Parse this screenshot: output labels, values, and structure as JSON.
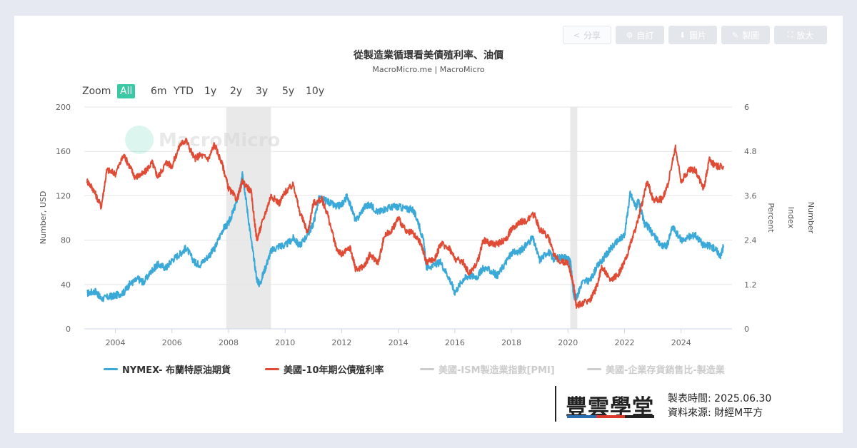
{
  "toolbar": {
    "share": "分享",
    "custom": "自訂",
    "image": "圖片",
    "draw": "製圖",
    "enlarge": "放大"
  },
  "chart_title": "從製造業循環看美債殖利率、油價",
  "chart_subtitle": "MacroMicro.me | MacroMicro",
  "watermark": "MacroMicro",
  "zoom": {
    "label": "Zoom",
    "options": [
      "All",
      "6m",
      "YTD",
      "1y",
      "2y",
      "3y",
      "5y",
      "10y"
    ],
    "selected": "All"
  },
  "brand": {
    "name": "豐雲學堂",
    "date_label": "製表時間:",
    "date": "2025.06.30",
    "source_label": "資料來源:",
    "source": "財經M平方"
  },
  "colors": {
    "oil": "#3aa9d8",
    "yield": "#e04b35",
    "pmi": "#cccccc",
    "ratio": "#cccccc",
    "recession": "#e9e9e9"
  },
  "chart_data": {
    "type": "line",
    "x_ticks": [
      "2004",
      "2006",
      "2008",
      "2010",
      "2012",
      "2014",
      "2016",
      "2018",
      "2020",
      "2022",
      "2024"
    ],
    "xlim": [
      2002.9,
      2025.8
    ],
    "left_axis": {
      "label": "Number, USD",
      "ticks": [
        "0",
        "40",
        "80",
        "120",
        "160",
        "200"
      ],
      "lim": [
        0,
        200
      ]
    },
    "right_axis": {
      "ticks": [
        "0",
        "1.2",
        "2.4",
        "3.6",
        "4.8",
        "6"
      ],
      "lim": [
        0,
        6
      ]
    },
    "right_axis_labels": [
      "Percent",
      "Index",
      "Number"
    ],
    "recession_bands": [
      [
        2007.92,
        2009.5
      ],
      [
        2020.08,
        2020.33
      ]
    ],
    "series": [
      {
        "name": "NYMEX- 布蘭特原油期貨",
        "axis": "left",
        "x": [
          2003.0,
          2003.3,
          2003.5,
          2003.8,
          2004.0,
          2004.3,
          2004.5,
          2004.8,
          2005.0,
          2005.3,
          2005.5,
          2005.8,
          2006.0,
          2006.3,
          2006.5,
          2006.8,
          2007.0,
          2007.3,
          2007.5,
          2007.8,
          2008.0,
          2008.2,
          2008.4,
          2008.5,
          2008.6,
          2008.8,
          2009.0,
          2009.1,
          2009.3,
          2009.5,
          2009.8,
          2010.0,
          2010.3,
          2010.5,
          2010.8,
          2011.0,
          2011.2,
          2011.5,
          2011.8,
          2012.0,
          2012.2,
          2012.5,
          2012.8,
          2013.0,
          2013.3,
          2013.5,
          2013.8,
          2014.0,
          2014.3,
          2014.5,
          2014.7,
          2014.9,
          2015.0,
          2015.3,
          2015.5,
          2015.8,
          2016.0,
          2016.3,
          2016.5,
          2016.8,
          2017.0,
          2017.3,
          2017.5,
          2017.8,
          2018.0,
          2018.3,
          2018.5,
          2018.75,
          2019.0,
          2019.3,
          2019.5,
          2019.8,
          2020.0,
          2020.1,
          2020.2,
          2020.3,
          2020.5,
          2020.8,
          2021.0,
          2021.3,
          2021.5,
          2021.8,
          2022.0,
          2022.2,
          2022.4,
          2022.5,
          2022.7,
          2022.9,
          2023.0,
          2023.3,
          2023.5,
          2023.7,
          2024.0,
          2024.3,
          2024.5,
          2024.8,
          2025.0,
          2025.2,
          2025.4,
          2025.5
        ],
        "values": [
          32,
          34,
          27,
          29,
          30,
          33,
          40,
          45,
          42,
          53,
          58,
          55,
          62,
          68,
          73,
          60,
          58,
          66,
          72,
          90,
          95,
          108,
          125,
          140,
          120,
          80,
          45,
          40,
          55,
          70,
          75,
          75,
          82,
          75,
          85,
          95,
          118,
          115,
          110,
          112,
          120,
          97,
          110,
          112,
          105,
          108,
          110,
          110,
          108,
          108,
          97,
          78,
          55,
          58,
          60,
          46,
          33,
          45,
          48,
          47,
          55,
          52,
          48,
          60,
          68,
          70,
          75,
          82,
          62,
          70,
          63,
          65,
          64,
          58,
          30,
          28,
          42,
          44,
          55,
          65,
          72,
          80,
          85,
          122,
          110,
          115,
          95,
          90,
          85,
          75,
          75,
          92,
          80,
          83,
          85,
          75,
          75,
          72,
          66,
          75
        ]
      },
      {
        "name": "美國-10年期公債殖利率",
        "axis": "right",
        "x": [
          2003.0,
          2003.2,
          2003.5,
          2003.7,
          2004.0,
          2004.3,
          2004.5,
          2004.7,
          2005.0,
          2005.3,
          2005.5,
          2005.8,
          2006.0,
          2006.3,
          2006.5,
          2006.8,
          2007.0,
          2007.3,
          2007.5,
          2007.8,
          2008.0,
          2008.3,
          2008.5,
          2008.8,
          2009.0,
          2009.2,
          2009.5,
          2009.8,
          2010.0,
          2010.3,
          2010.5,
          2010.8,
          2011.0,
          2011.3,
          2011.5,
          2011.8,
          2012.0,
          2012.3,
          2012.5,
          2012.8,
          2013.0,
          2013.3,
          2013.5,
          2013.8,
          2014.0,
          2014.3,
          2014.5,
          2014.8,
          2015.0,
          2015.3,
          2015.5,
          2015.8,
          2016.0,
          2016.3,
          2016.5,
          2016.8,
          2017.0,
          2017.3,
          2017.5,
          2017.8,
          2018.0,
          2018.3,
          2018.5,
          2018.8,
          2019.0,
          2019.3,
          2019.5,
          2019.8,
          2020.0,
          2020.2,
          2020.3,
          2020.5,
          2020.8,
          2021.0,
          2021.2,
          2021.5,
          2021.8,
          2022.0,
          2022.3,
          2022.5,
          2022.8,
          2023.0,
          2023.3,
          2023.5,
          2023.8,
          2024.0,
          2024.3,
          2024.5,
          2024.8,
          2025.0,
          2025.2,
          2025.5
        ],
        "values": [
          4.0,
          3.8,
          3.3,
          4.3,
          4.2,
          4.7,
          4.4,
          4.1,
          4.2,
          4.5,
          4.1,
          4.5,
          4.4,
          5.0,
          5.1,
          4.6,
          4.7,
          4.6,
          5.0,
          4.4,
          3.8,
          3.5,
          4.0,
          3.7,
          2.4,
          2.9,
          3.6,
          3.4,
          3.7,
          3.9,
          3.2,
          2.6,
          3.4,
          3.5,
          3.1,
          2.2,
          2.0,
          2.2,
          1.6,
          1.7,
          2.0,
          1.8,
          2.5,
          2.7,
          3.0,
          2.6,
          2.6,
          2.3,
          1.8,
          1.9,
          2.3,
          2.2,
          1.9,
          1.8,
          1.5,
          1.8,
          2.4,
          2.3,
          2.3,
          2.4,
          2.7,
          2.9,
          2.9,
          3.1,
          2.7,
          2.5,
          2.0,
          1.8,
          1.8,
          1.2,
          0.6,
          0.7,
          0.8,
          1.1,
          1.7,
          1.3,
          1.5,
          1.8,
          2.5,
          3.0,
          4.0,
          3.5,
          3.5,
          3.8,
          4.9,
          4.0,
          4.3,
          4.3,
          3.8,
          4.6,
          4.4,
          4.4
        ]
      }
    ],
    "hidden_series": [
      "美國-ISM製造業指數[PMI]",
      "美國-企業存貨銷售比-製造業"
    ]
  }
}
